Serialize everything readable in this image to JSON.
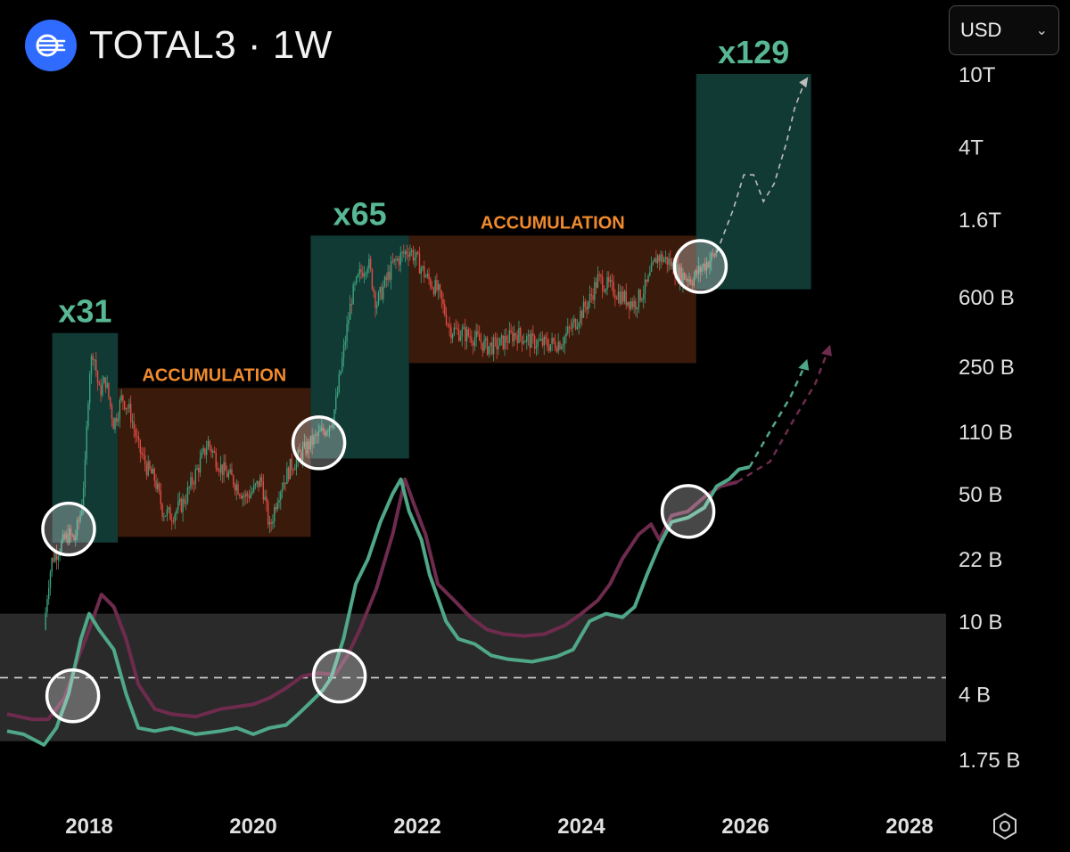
{
  "header": {
    "title": "TOTAL3 · 1W",
    "logo_icon": "waves-logo-icon"
  },
  "currency_select": {
    "value": "USD"
  },
  "chart_data": {
    "type": "candlestick+line",
    "y_scale": "log",
    "y_ticks": [
      {
        "value": 10000000000000,
        "label": "10T"
      },
      {
        "value": 4000000000000,
        "label": "4T"
      },
      {
        "value": 1600000000000,
        "label": "1.6T"
      },
      {
        "value": 600000000000,
        "label": "600 B"
      },
      {
        "value": 250000000000,
        "label": "250 B"
      },
      {
        "value": 110000000000,
        "label": "110 B"
      },
      {
        "value": 50000000000,
        "label": "50 B"
      },
      {
        "value": 22000000000,
        "label": "22 B"
      },
      {
        "value": 10000000000,
        "label": "10 B"
      },
      {
        "value": 4000000000,
        "label": "4 B"
      },
      {
        "value": 1750000000,
        "label": "1.75 B"
      }
    ],
    "x_ticks": [
      2018,
      2020,
      2022,
      2024,
      2026,
      2028
    ],
    "x_range": [
      2017,
      2028.8
    ],
    "zones": [
      {
        "kind": "growth",
        "label": "x31",
        "x0": 2017.55,
        "x1": 2018.35,
        "y0": 27000000000,
        "y1": 380000000000
      },
      {
        "kind": "accumulation",
        "label": "ACCUMULATION",
        "x0": 2018.35,
        "x1": 2020.7,
        "y0": 29000000000,
        "y1": 190000000000
      },
      {
        "kind": "growth",
        "label": "x65",
        "x0": 2020.7,
        "x1": 2021.9,
        "y0": 78000000000,
        "y1": 1300000000000
      },
      {
        "kind": "accumulation",
        "label": "ACCUMULATION",
        "x0": 2021.9,
        "x1": 2025.4,
        "y0": 260000000000,
        "y1": 1300000000000
      },
      {
        "kind": "growth",
        "label": "x129",
        "x0": 2025.4,
        "x1": 2026.8,
        "y0": 660000000000,
        "y1": 10000000000000
      }
    ],
    "price_path": [
      [
        2017.45,
        9000000000
      ],
      [
        2017.5,
        16000000000
      ],
      [
        2017.55,
        22000000000
      ],
      [
        2017.65,
        26000000000
      ],
      [
        2017.75,
        30000000000
      ],
      [
        2017.82,
        28000000000
      ],
      [
        2017.9,
        40000000000
      ],
      [
        2017.95,
        70000000000
      ],
      [
        2018.0,
        230000000000
      ],
      [
        2018.05,
        310000000000
      ],
      [
        2018.12,
        180000000000
      ],
      [
        2018.2,
        210000000000
      ],
      [
        2018.3,
        120000000000
      ],
      [
        2018.4,
        170000000000
      ],
      [
        2018.5,
        140000000000
      ],
      [
        2018.6,
        90000000000
      ],
      [
        2018.7,
        70000000000
      ],
      [
        2018.8,
        60000000000
      ],
      [
        2018.9,
        40000000000
      ],
      [
        2019.0,
        38000000000
      ],
      [
        2019.15,
        45000000000
      ],
      [
        2019.3,
        65000000000
      ],
      [
        2019.45,
        95000000000
      ],
      [
        2019.6,
        70000000000
      ],
      [
        2019.75,
        60000000000
      ],
      [
        2019.9,
        48000000000
      ],
      [
        2020.0,
        52000000000
      ],
      [
        2020.1,
        60000000000
      ],
      [
        2020.2,
        32000000000
      ],
      [
        2020.3,
        50000000000
      ],
      [
        2020.45,
        70000000000
      ],
      [
        2020.6,
        85000000000
      ],
      [
        2020.75,
        100000000000
      ],
      [
        2020.85,
        110000000000
      ],
      [
        2020.95,
        125000000000
      ],
      [
        2021.0,
        150000000000
      ],
      [
        2021.1,
        300000000000
      ],
      [
        2021.2,
        600000000000
      ],
      [
        2021.3,
        800000000000
      ],
      [
        2021.4,
        950000000000
      ],
      [
        2021.5,
        550000000000
      ],
      [
        2021.6,
        700000000000
      ],
      [
        2021.7,
        900000000000
      ],
      [
        2021.8,
        1000000000000
      ],
      [
        2021.9,
        1100000000000
      ],
      [
        2022.0,
        950000000000
      ],
      [
        2022.1,
        780000000000
      ],
      [
        2022.25,
        650000000000
      ],
      [
        2022.4,
        400000000000
      ],
      [
        2022.55,
        380000000000
      ],
      [
        2022.7,
        360000000000
      ],
      [
        2022.85,
        320000000000
      ],
      [
        2023.0,
        330000000000
      ],
      [
        2023.2,
        380000000000
      ],
      [
        2023.4,
        340000000000
      ],
      [
        2023.6,
        330000000000
      ],
      [
        2023.75,
        340000000000
      ],
      [
        2023.9,
        420000000000
      ],
      [
        2024.1,
        580000000000
      ],
      [
        2024.2,
        750000000000
      ],
      [
        2024.35,
        680000000000
      ],
      [
        2024.5,
        600000000000
      ],
      [
        2024.65,
        550000000000
      ],
      [
        2024.8,
        700000000000
      ],
      [
        2024.92,
        1000000000000
      ],
      [
        2025.05,
        950000000000
      ],
      [
        2025.2,
        800000000000
      ],
      [
        2025.35,
        750000000000
      ],
      [
        2025.5,
        900000000000
      ],
      [
        2025.65,
        1050000000000
      ]
    ],
    "projection_path": [
      [
        2025.65,
        1050000000000
      ],
      [
        2025.85,
        1800000000000
      ],
      [
        2025.98,
        2800000000000
      ],
      [
        2026.1,
        2800000000000
      ],
      [
        2026.22,
        2000000000000
      ],
      [
        2026.35,
        2500000000000
      ],
      [
        2026.5,
        4200000000000
      ],
      [
        2026.6,
        6500000000000
      ],
      [
        2026.72,
        9000000000000
      ]
    ],
    "oscillator": {
      "band_top": 11000000000,
      "band_bottom": 2200000000,
      "midline": 4900000000,
      "green_series": [
        [
          2017.0,
          2500000000
        ],
        [
          2017.2,
          2400000000
        ],
        [
          2017.45,
          2100000000
        ],
        [
          2017.6,
          2600000000
        ],
        [
          2017.75,
          4000000000
        ],
        [
          2017.9,
          8000000000
        ],
        [
          2018.0,
          11000000000
        ],
        [
          2018.12,
          9000000000
        ],
        [
          2018.3,
          7000000000
        ],
        [
          2018.45,
          4000000000
        ],
        [
          2018.6,
          2600000000
        ],
        [
          2018.8,
          2500000000
        ],
        [
          2019.0,
          2600000000
        ],
        [
          2019.3,
          2400000000
        ],
        [
          2019.6,
          2500000000
        ],
        [
          2019.8,
          2600000000
        ],
        [
          2020.0,
          2400000000
        ],
        [
          2020.2,
          2600000000
        ],
        [
          2020.4,
          2700000000
        ],
        [
          2020.55,
          3100000000
        ],
        [
          2020.7,
          3600000000
        ],
        [
          2020.85,
          4200000000
        ],
        [
          2020.95,
          4900000000
        ],
        [
          2021.1,
          8000000000
        ],
        [
          2021.25,
          16000000000
        ],
        [
          2021.4,
          22000000000
        ],
        [
          2021.55,
          35000000000
        ],
        [
          2021.7,
          50000000000
        ],
        [
          2021.8,
          60000000000
        ],
        [
          2021.9,
          40000000000
        ],
        [
          2022.05,
          28000000000
        ],
        [
          2022.15,
          18000000000
        ],
        [
          2022.35,
          10000000000
        ],
        [
          2022.5,
          8000000000
        ],
        [
          2022.7,
          7500000000
        ],
        [
          2022.9,
          6500000000
        ],
        [
          2023.1,
          6200000000
        ],
        [
          2023.4,
          6000000000
        ],
        [
          2023.7,
          6400000000
        ],
        [
          2023.9,
          7000000000
        ],
        [
          2024.1,
          10000000000
        ],
        [
          2024.3,
          11000000000
        ],
        [
          2024.5,
          10500000000
        ],
        [
          2024.65,
          12000000000
        ],
        [
          2024.8,
          18000000000
        ],
        [
          2024.95,
          26000000000
        ],
        [
          2025.1,
          35000000000
        ],
        [
          2025.3,
          37000000000
        ],
        [
          2025.5,
          42000000000
        ],
        [
          2025.65,
          55000000000
        ],
        [
          2025.8,
          60000000000
        ],
        [
          2025.92,
          68000000000
        ],
        [
          2026.05,
          70000000000
        ]
      ],
      "purple_series": [
        [
          2017.0,
          3100000000
        ],
        [
          2017.3,
          2900000000
        ],
        [
          2017.5,
          2900000000
        ],
        [
          2017.7,
          3800000000
        ],
        [
          2017.85,
          6000000000
        ],
        [
          2018.0,
          9000000000
        ],
        [
          2018.15,
          14000000000
        ],
        [
          2018.3,
          12000000000
        ],
        [
          2018.45,
          8000000000
        ],
        [
          2018.6,
          4500000000
        ],
        [
          2018.8,
          3300000000
        ],
        [
          2019.0,
          3100000000
        ],
        [
          2019.3,
          3000000000
        ],
        [
          2019.6,
          3300000000
        ],
        [
          2019.8,
          3400000000
        ],
        [
          2020.0,
          3500000000
        ],
        [
          2020.2,
          3800000000
        ],
        [
          2020.4,
          4300000000
        ],
        [
          2020.6,
          5000000000
        ],
        [
          2020.8,
          5200000000
        ],
        [
          2021.0,
          5100000000
        ],
        [
          2021.15,
          6500000000
        ],
        [
          2021.3,
          9000000000
        ],
        [
          2021.5,
          15000000000
        ],
        [
          2021.7,
          30000000000
        ],
        [
          2021.85,
          60000000000
        ],
        [
          2021.95,
          45000000000
        ],
        [
          2022.1,
          30000000000
        ],
        [
          2022.25,
          16000000000
        ],
        [
          2022.45,
          13000000000
        ],
        [
          2022.65,
          10500000000
        ],
        [
          2022.85,
          9000000000
        ],
        [
          2023.05,
          8500000000
        ],
        [
          2023.3,
          8300000000
        ],
        [
          2023.55,
          8500000000
        ],
        [
          2023.8,
          9500000000
        ],
        [
          2024.0,
          11000000000
        ],
        [
          2024.2,
          13000000000
        ],
        [
          2024.35,
          16000000000
        ],
        [
          2024.5,
          22000000000
        ],
        [
          2024.7,
          30000000000
        ],
        [
          2024.85,
          34000000000
        ],
        [
          2024.95,
          28000000000
        ],
        [
          2025.1,
          38000000000
        ],
        [
          2025.3,
          40000000000
        ],
        [
          2025.5,
          48000000000
        ],
        [
          2025.7,
          55000000000
        ],
        [
          2025.9,
          58000000000
        ]
      ],
      "green_projection": [
        [
          2026.05,
          70000000000
        ],
        [
          2026.3,
          110000000000
        ],
        [
          2026.55,
          170000000000
        ],
        [
          2026.72,
          250000000000
        ]
      ],
      "purple_projection": [
        [
          2025.9,
          58000000000
        ],
        [
          2026.3,
          75000000000
        ],
        [
          2026.6,
          130000000000
        ],
        [
          2026.85,
          200000000000
        ],
        [
          2027.0,
          300000000000
        ]
      ]
    },
    "markers": [
      {
        "x": 2017.75,
        "y": 32000000000
      },
      {
        "x": 2020.8,
        "y": 95000000000
      },
      {
        "x": 2025.45,
        "y": 880000000000
      },
      {
        "x": 2017.8,
        "y": 3900000000
      },
      {
        "x": 2021.05,
        "y": 5000000000
      },
      {
        "x": 2025.3,
        "y": 40000000000
      }
    ],
    "colors": {
      "growth_fill": "#123a34",
      "accum_fill": "#3a1a0a",
      "growth_label": "#57b893",
      "accum_label": "#f08a2c",
      "candle_up": "#3ba37f",
      "candle_down": "#e24b45",
      "green_line": "#4fa888",
      "purple_line": "#6e2b4d",
      "band": "#2a2a2a",
      "axis_text": "#e0e0e0"
    }
  }
}
